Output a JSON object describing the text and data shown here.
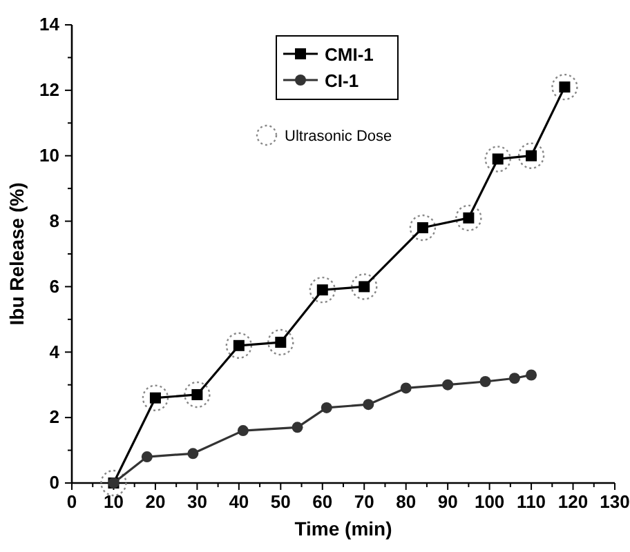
{
  "chart_data": {
    "type": "line",
    "xlabel": "Time (min)",
    "ylabel": "Ibu Release (%)",
    "xlim": [
      0,
      130
    ],
    "ylim": [
      0,
      14
    ],
    "xticks": [
      0,
      {
        "value": 5,
        "label": null
      },
      10,
      {
        "value": 15,
        "label": null
      },
      20,
      {
        "value": 25,
        "label": null
      },
      30,
      {
        "value": 35,
        "label": null
      },
      40,
      {
        "value": 45,
        "label": null
      },
      50,
      {
        "value": 55,
        "label": null
      },
      60,
      {
        "value": 65,
        "label": null
      },
      70,
      {
        "value": 75,
        "label": null
      },
      80,
      {
        "value": 85,
        "label": null
      },
      90,
      {
        "value": 95,
        "label": null
      },
      100,
      {
        "value": 105,
        "label": null
      },
      110,
      {
        "value": 115,
        "label": null
      },
      120,
      {
        "value": 125,
        "label": null
      },
      130
    ],
    "yticks": [
      0,
      {
        "value": 1,
        "label": null
      },
      2,
      {
        "value": 3,
        "label": null
      },
      4,
      {
        "value": 5,
        "label": null
      },
      6,
      {
        "value": 7,
        "label": null
      },
      8,
      {
        "value": 9,
        "label": null
      },
      10,
      {
        "value": 11,
        "label": null
      },
      12,
      {
        "value": 13,
        "label": null
      },
      14
    ],
    "grid": false,
    "legend": "top",
    "series": [
      {
        "name": "CMI-1",
        "marker": "square",
        "color": "#000000",
        "x": [
          10,
          20,
          30,
          40,
          50,
          60,
          70,
          84,
          95,
          102,
          110,
          118
        ],
        "values": [
          0,
          2.6,
          2.7,
          4.2,
          4.3,
          5.9,
          6.0,
          7.8,
          8.1,
          9.9,
          10.0,
          12.1
        ]
      },
      {
        "name": "CI-1",
        "marker": "circle",
        "color": "#333333",
        "x": [
          10,
          18,
          29,
          41,
          54,
          61,
          71,
          80,
          90,
          99,
          106,
          110
        ],
        "values": [
          0,
          0.8,
          0.9,
          1.6,
          1.7,
          2.3,
          2.4,
          2.9,
          3.0,
          3.1,
          3.2,
          3.3
        ]
      },
      {
        "name": "Ultrasonic Dose",
        "type": "scatter",
        "marker": "circle",
        "line_style": "dotted",
        "color": "#888888",
        "x": [
          10,
          20,
          30,
          40,
          50,
          60,
          70,
          84,
          95,
          102,
          110,
          118
        ],
        "values": [
          0,
          2.6,
          2.7,
          4.2,
          4.3,
          5.9,
          6.0,
          7.8,
          8.1,
          9.9,
          10.0,
          12.1
        ]
      }
    ]
  }
}
